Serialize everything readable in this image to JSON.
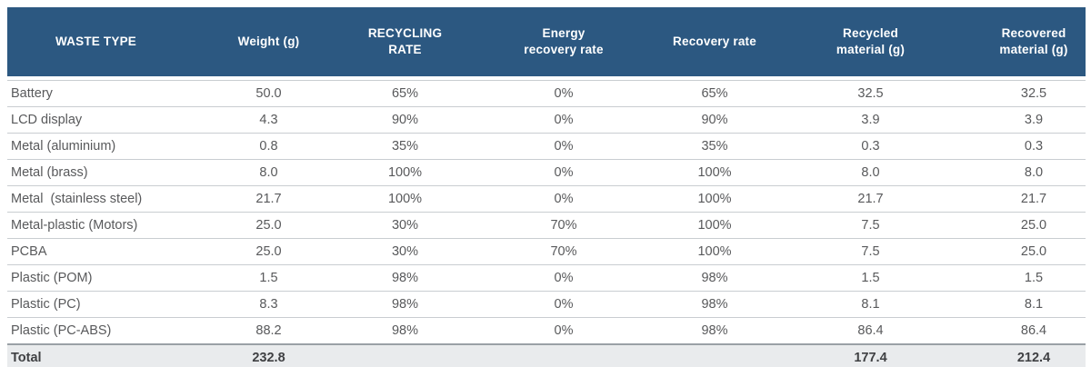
{
  "colors": {
    "header_bg": "#2c5881",
    "header_text": "#ffffff",
    "body_text": "#58595b",
    "divider": "#c9cdd1",
    "strong_divider": "#9aa0a6",
    "total_row_bg": "#e9ebed"
  },
  "table": {
    "columns": [
      "WASTE TYPE",
      "Weight (g)",
      "RECYCLING RATE",
      "Energy\nrecovery rate",
      "Recovery rate",
      "Recycled\nmaterial (g)",
      "Recovered\nmaterial (g)"
    ],
    "rows": [
      {
        "waste_type": "Battery",
        "weight": "50.0",
        "recycling_rate": "65%",
        "energy_recovery_rate": "0%",
        "recovery_rate": "65%",
        "recycled_material": "32.5",
        "recovered_material": "32.5"
      },
      {
        "waste_type": "LCD display",
        "weight": "4.3",
        "recycling_rate": "90%",
        "energy_recovery_rate": "0%",
        "recovery_rate": "90%",
        "recycled_material": "3.9",
        "recovered_material": "3.9"
      },
      {
        "waste_type": "Metal (aluminium)",
        "weight": "0.8",
        "recycling_rate": "35%",
        "energy_recovery_rate": "0%",
        "recovery_rate": "35%",
        "recycled_material": "0.3",
        "recovered_material": "0.3"
      },
      {
        "waste_type": "Metal (brass)",
        "weight": "8.0",
        "recycling_rate": "100%",
        "energy_recovery_rate": "0%",
        "recovery_rate": "100%",
        "recycled_material": "8.0",
        "recovered_material": "8.0"
      },
      {
        "waste_type": "Metal  (stainless steel)",
        "weight": "21.7",
        "recycling_rate": "100%",
        "energy_recovery_rate": "0%",
        "recovery_rate": "100%",
        "recycled_material": "21.7",
        "recovered_material": "21.7"
      },
      {
        "waste_type": "Metal-plastic (Motors)",
        "weight": "25.0",
        "recycling_rate": "30%",
        "energy_recovery_rate": "70%",
        "recovery_rate": "100%",
        "recycled_material": "7.5",
        "recovered_material": "25.0"
      },
      {
        "waste_type": "PCBA",
        "weight": "25.0",
        "recycling_rate": "30%",
        "energy_recovery_rate": "70%",
        "recovery_rate": "100%",
        "recycled_material": "7.5",
        "recovered_material": "25.0"
      },
      {
        "waste_type": "Plastic (POM)",
        "weight": "1.5",
        "recycling_rate": "98%",
        "energy_recovery_rate": "0%",
        "recovery_rate": "98%",
        "recycled_material": "1.5",
        "recovered_material": "1.5"
      },
      {
        "waste_type": "Plastic (PC)",
        "weight": "8.3",
        "recycling_rate": "98%",
        "energy_recovery_rate": "0%",
        "recovery_rate": "98%",
        "recycled_material": "8.1",
        "recovered_material": "8.1"
      },
      {
        "waste_type": "Plastic (PC-ABS)",
        "weight": "88.2",
        "recycling_rate": "98%",
        "energy_recovery_rate": "0%",
        "recovery_rate": "98%",
        "recycled_material": "86.4",
        "recovered_material": "86.4"
      }
    ],
    "total": {
      "label": "Total",
      "weight": "232.8",
      "recycling_rate": "",
      "energy_recovery_rate": "",
      "recovery_rate": "",
      "recycled_material": "177.4",
      "recovered_material": "212.4"
    }
  },
  "chart_data": {
    "type": "table",
    "columns": [
      "WASTE TYPE",
      "Weight (g)",
      "RECYCLING RATE",
      "Energy recovery rate",
      "Recovery rate",
      "Recycled material (g)",
      "Recovered material (g)"
    ],
    "rows": [
      [
        "Battery",
        50.0,
        "65%",
        "0%",
        "65%",
        32.5,
        32.5
      ],
      [
        "LCD display",
        4.3,
        "90%",
        "0%",
        "90%",
        3.9,
        3.9
      ],
      [
        "Metal (aluminium)",
        0.8,
        "35%",
        "0%",
        "35%",
        0.3,
        0.3
      ],
      [
        "Metal (brass)",
        8.0,
        "100%",
        "0%",
        "100%",
        8.0,
        8.0
      ],
      [
        "Metal (stainless steel)",
        21.7,
        "100%",
        "0%",
        "100%",
        21.7,
        21.7
      ],
      [
        "Metal-plastic (Motors)",
        25.0,
        "30%",
        "70%",
        "100%",
        7.5,
        25.0
      ],
      [
        "PCBA",
        25.0,
        "30%",
        "70%",
        "100%",
        7.5,
        25.0
      ],
      [
        "Plastic (POM)",
        1.5,
        "98%",
        "0%",
        "98%",
        1.5,
        1.5
      ],
      [
        "Plastic (PC)",
        8.3,
        "98%",
        "0%",
        "98%",
        8.1,
        8.1
      ],
      [
        "Plastic (PC-ABS)",
        88.2,
        "98%",
        "0%",
        "98%",
        86.4,
        86.4
      ]
    ],
    "total_row": [
      "Total",
      232.8,
      "",
      "",
      "",
      177.4,
      212.4
    ],
    "title": "",
    "legend": "none",
    "grid": "horizontal-dividers"
  }
}
